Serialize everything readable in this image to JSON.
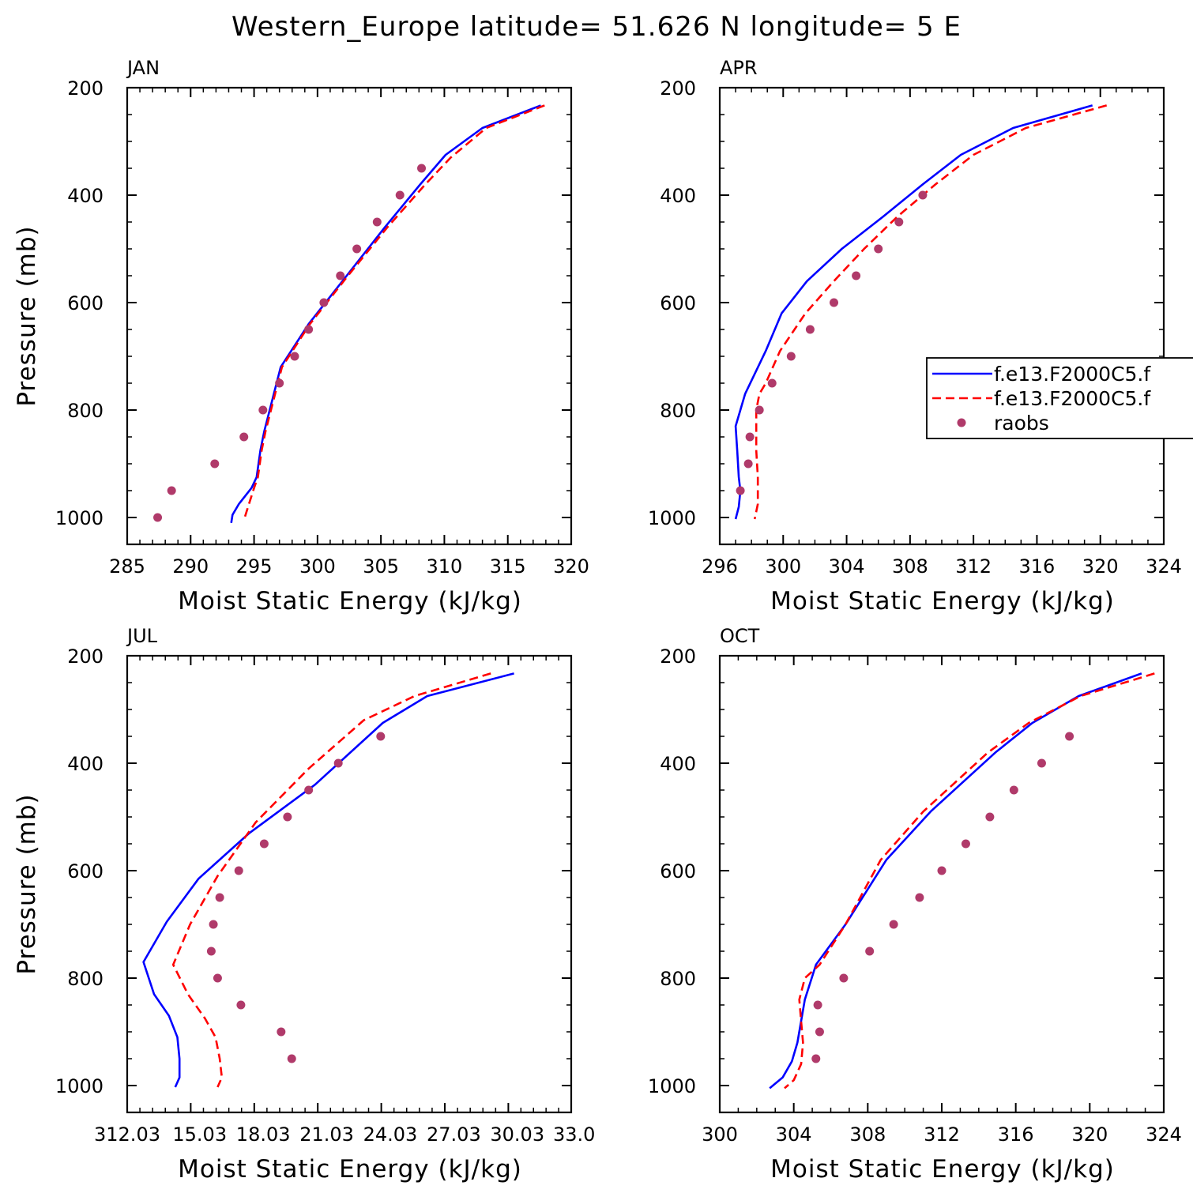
{
  "title": "Western_Europe  latitude= 51.626 N longitude= 5 E",
  "colors": {
    "model_1": "#0000ff",
    "model_2": "#ff0000",
    "raobs": "#b03a6a"
  },
  "legend": {
    "entries": [
      {
        "label": "f.e13.F2000C5.f",
        "style": "solid",
        "color": "#0000ff"
      },
      {
        "label": "f.e13.F2000C5.f",
        "style": "dashed",
        "color": "#ff0000"
      },
      {
        "label": "raobs",
        "style": "marker",
        "color": "#b03a6a"
      }
    ],
    "placement": "right"
  },
  "chart_data": [
    {
      "type": "line",
      "panel": "JAN",
      "xlabel": "Moist Static Energy (kJ/kg)",
      "ylabel": "Pressure (mb)",
      "xlim": [
        285,
        320
      ],
      "xticks": [
        285,
        290,
        295,
        300,
        305,
        310,
        315,
        320
      ],
      "xtick_labels": [
        "285",
        "290",
        "295",
        "300",
        "305",
        "310",
        "315",
        "320"
      ],
      "ylim": [
        1050,
        200
      ],
      "yticks": [
        200,
        400,
        600,
        800,
        1000
      ],
      "series": [
        {
          "name": "f.e13.F2000C5.f",
          "style": "solid",
          "color": "#0000ff",
          "x": [
            317.6,
            313.0,
            310.1,
            308.1,
            305.3,
            302.3,
            299.3,
            297.1,
            295.8,
            295.5,
            295.2,
            294.8,
            293.8,
            293.3,
            293.2
          ],
          "y": [
            233,
            275,
            325,
            380,
            460,
            550,
            640,
            720,
            840,
            875,
            925,
            945,
            975,
            995,
            1010
          ]
        },
        {
          "name": "f.e13.F2000C5.f",
          "style": "dashed",
          "color": "#ff0000",
          "x": [
            317.9,
            313.3,
            310.5,
            308.5,
            305.5,
            302.4,
            299.4,
            297.2,
            295.9,
            295.6,
            295.3,
            295.0,
            294.6,
            294.2
          ],
          "y": [
            233,
            275,
            330,
            380,
            460,
            550,
            640,
            720,
            840,
            875,
            925,
            945,
            975,
            1005
          ]
        },
        {
          "name": "raobs",
          "style": "marker",
          "color": "#b03a6a",
          "x": [
            308.2,
            306.5,
            304.7,
            303.1,
            301.8,
            300.5,
            299.3,
            298.2,
            297.0,
            295.7,
            294.2,
            291.9,
            288.5,
            287.4
          ],
          "y": [
            350,
            400,
            450,
            500,
            550,
            600,
            650,
            700,
            750,
            800,
            850,
            900,
            950,
            1000
          ]
        }
      ]
    },
    {
      "type": "line",
      "panel": "APR",
      "xlabel": "Moist Static Energy (kJ/kg)",
      "ylabel": "",
      "xlim": [
        296,
        324
      ],
      "xticks": [
        296,
        300,
        304,
        308,
        312,
        316,
        320,
        324
      ],
      "xtick_labels": [
        "296",
        "300",
        "304",
        "308",
        "312",
        "316",
        "320",
        "324"
      ],
      "ylim": [
        1050,
        200
      ],
      "yticks": [
        200,
        400,
        600,
        800,
        1000
      ],
      "series": [
        {
          "name": "f.e13.F2000C5.f",
          "style": "solid",
          "color": "#0000ff",
          "x": [
            319.5,
            314.5,
            311.2,
            308.8,
            306.3,
            303.7,
            301.5,
            299.9,
            298.9,
            297.6,
            297.0,
            297.1,
            297.2,
            297.3,
            297.2,
            297.0
          ],
          "y": [
            233,
            275,
            325,
            380,
            440,
            500,
            560,
            620,
            690,
            770,
            830,
            875,
            925,
            950,
            980,
            1003
          ]
        },
        {
          "name": "f.e13.F2000C5.f",
          "style": "dashed",
          "color": "#ff0000",
          "x": [
            320.4,
            315.3,
            312.0,
            309.6,
            307.2,
            305.1,
            303.2,
            301.4,
            299.8,
            298.9,
            298.5,
            298.3,
            298.3,
            298.4,
            298.4,
            298.2
          ],
          "y": [
            233,
            275,
            325,
            380,
            440,
            500,
            560,
            620,
            690,
            750,
            770,
            800,
            875,
            925,
            975,
            1003
          ]
        },
        {
          "name": "raobs",
          "style": "marker",
          "color": "#b03a6a",
          "x": [
            308.8,
            307.3,
            306.0,
            304.6,
            303.2,
            301.7,
            300.5,
            299.3,
            298.5,
            297.9,
            297.8,
            297.3
          ],
          "y": [
            400,
            450,
            500,
            550,
            600,
            650,
            700,
            750,
            800,
            850,
            900,
            950
          ]
        }
      ]
    },
    {
      "type": "line",
      "panel": "JUL",
      "xlabel": "Moist Static Energy (kJ/kg)",
      "ylabel": "Pressure (mb)",
      "xlim": [
        312.03,
        333.0
      ],
      "xticks": [
        312.03,
        315.03,
        318.03,
        321.03,
        324.03,
        327.03,
        330.03,
        333.0
      ],
      "xtick_labels": [
        "312.03",
        "15.03",
        "18.03",
        "21.03",
        "24.03",
        "27.03",
        "30.03",
        "33.0"
      ],
      "ylim": [
        1050,
        200
      ],
      "yticks": [
        200,
        400,
        600,
        800,
        1000
      ],
      "series": [
        {
          "name": "f.e13.F2000C5.f",
          "style": "solid",
          "color": "#0000ff",
          "x": [
            330.3,
            326.2,
            324.1,
            320.9,
            317.8,
            315.4,
            313.9,
            312.8,
            313.3,
            314.0,
            314.4,
            314.5,
            314.5,
            314.3
          ],
          "y": [
            233,
            275,
            325,
            440,
            530,
            615,
            695,
            770,
            830,
            870,
            910,
            950,
            985,
            1003
          ]
        },
        {
          "name": "f.e13.F2000C5.f",
          "style": "dashed",
          "color": "#ff0000",
          "x": [
            329.2,
            325.6,
            323.2,
            320.6,
            318.1,
            316.3,
            315.0,
            314.2,
            314.9,
            315.7,
            316.2,
            316.4,
            316.5,
            316.3
          ],
          "y": [
            233,
            275,
            320,
            410,
            510,
            610,
            700,
            775,
            830,
            875,
            910,
            950,
            985,
            1003
          ]
        },
        {
          "name": "raobs",
          "style": "marker",
          "color": "#b03a6a",
          "x": [
            324.0,
            322.0,
            320.6,
            319.6,
            318.5,
            317.3,
            316.4,
            316.1,
            316.0,
            316.3,
            317.4,
            319.3,
            319.8
          ],
          "y": [
            350,
            400,
            450,
            500,
            550,
            600,
            650,
            700,
            750,
            800,
            850,
            900,
            950
          ]
        }
      ]
    },
    {
      "type": "line",
      "panel": "OCT",
      "xlabel": "Moist Static Energy (kJ/kg)",
      "ylabel": "",
      "xlim": [
        300,
        324
      ],
      "xticks": [
        300,
        304,
        308,
        312,
        316,
        320,
        324
      ],
      "xtick_labels": [
        "300",
        "304",
        "308",
        "312",
        "316",
        "320",
        "324"
      ],
      "ylim": [
        1050,
        200
      ],
      "yticks": [
        200,
        400,
        600,
        800,
        1000
      ],
      "series": [
        {
          "name": "f.e13.F2000C5.f",
          "style": "solid",
          "color": "#0000ff",
          "x": [
            322.8,
            319.4,
            316.9,
            314.9,
            311.4,
            309.0,
            306.8,
            305.2,
            304.6,
            304.4,
            304.2,
            303.9,
            303.4,
            302.7
          ],
          "y": [
            233,
            275,
            325,
            380,
            490,
            580,
            700,
            775,
            840,
            880,
            920,
            955,
            985,
            1005
          ]
        },
        {
          "name": "f.e13.F2000C5.f",
          "style": "dashed",
          "color": "#ff0000",
          "x": [
            323.5,
            319.5,
            316.7,
            314.5,
            311.0,
            308.7,
            306.8,
            305.4,
            304.6,
            304.3,
            304.4,
            304.5,
            304.4,
            304.0,
            303.5
          ],
          "y": [
            233,
            275,
            325,
            380,
            490,
            580,
            700,
            775,
            800,
            840,
            880,
            920,
            960,
            990,
            1005
          ]
        },
        {
          "name": "raobs",
          "style": "marker",
          "color": "#b03a6a",
          "x": [
            318.9,
            317.4,
            315.9,
            314.6,
            313.3,
            312.0,
            310.8,
            309.4,
            308.1,
            306.7,
            305.3,
            305.4,
            305.2
          ],
          "y": [
            350,
            400,
            450,
            500,
            550,
            600,
            650,
            700,
            750,
            800,
            850,
            900,
            950
          ]
        }
      ]
    }
  ]
}
